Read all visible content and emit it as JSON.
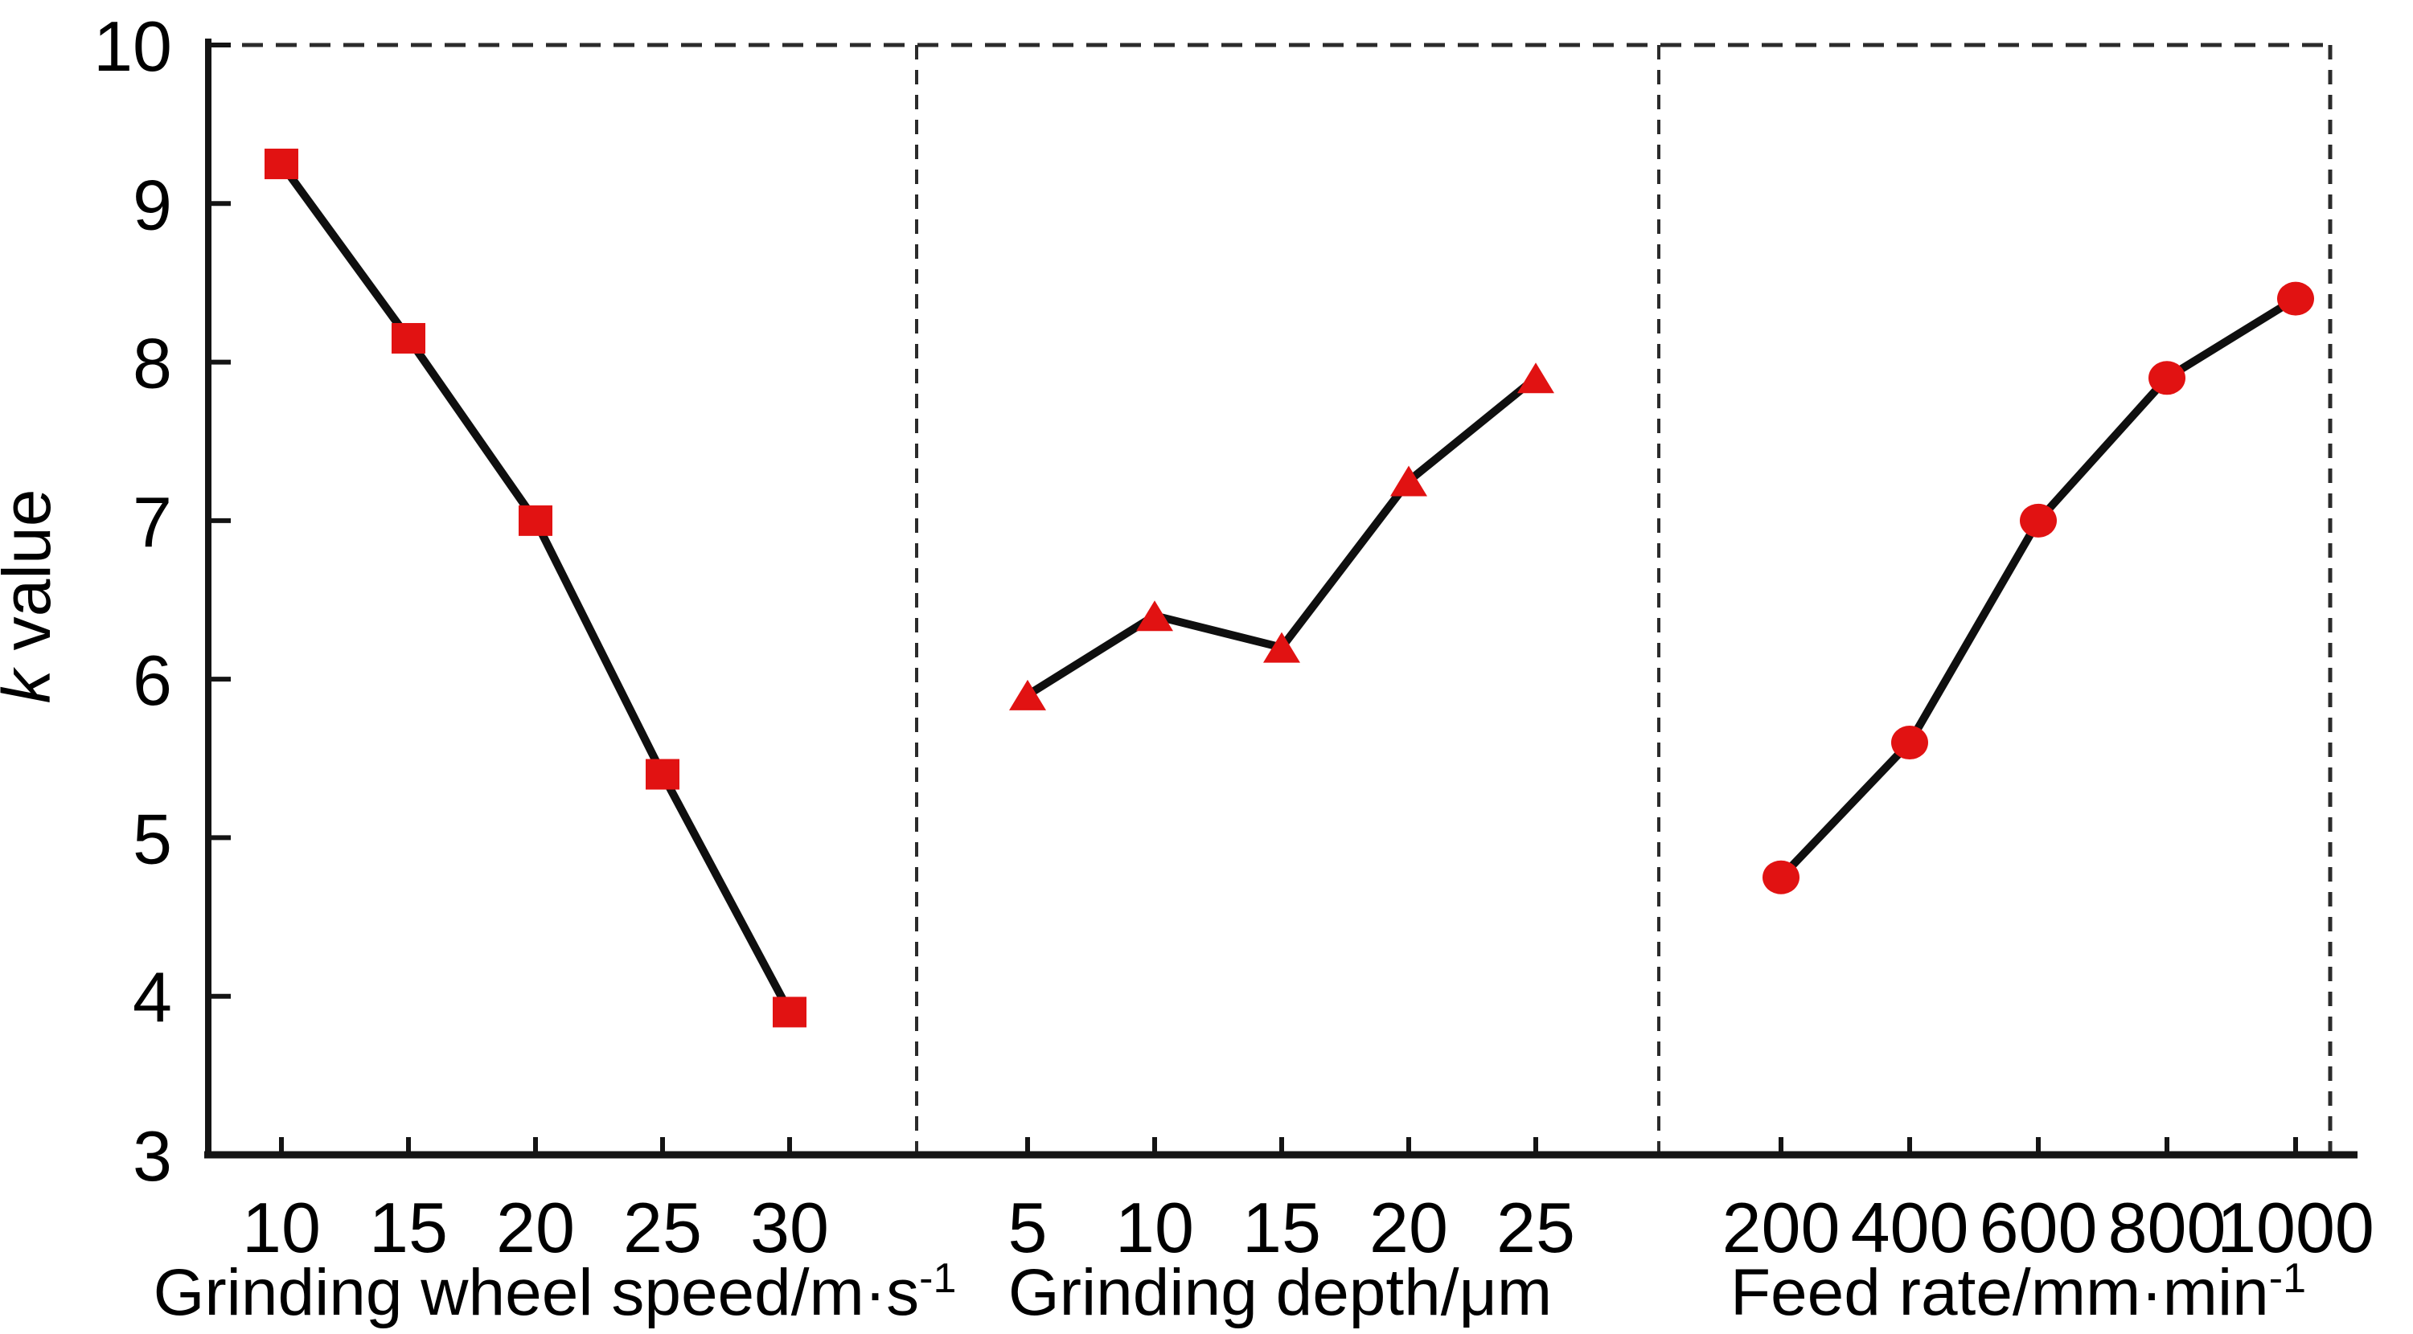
{
  "chart_data": {
    "type": "line",
    "title": "",
    "ylabel": "k value",
    "ylabel_parts": {
      "italic": "k",
      "regular": "value"
    },
    "ylim": [
      3,
      10
    ],
    "yticks": [
      10,
      9,
      8,
      7,
      6,
      5,
      4,
      3
    ],
    "grid": false,
    "legend_position": "none",
    "frame_style": {
      "left": "solid",
      "bottom": "solid",
      "top": "dashed",
      "right": "dashed",
      "panel_dividers": "dashed"
    },
    "colors": {
      "marker": "#e11212",
      "line": "#0f0f0f",
      "axis": "#141414",
      "frame": "#2b2b2b",
      "text": "#000000",
      "background": "#ffffff"
    },
    "panels": [
      {
        "name": "grinding-wheel-speed",
        "xlabel": "Grinding wheel speed/m·s⁻¹",
        "marker": "square",
        "x": [
          10,
          15,
          20,
          25,
          30
        ],
        "y": [
          9.25,
          8.15,
          7.0,
          5.4,
          3.9
        ]
      },
      {
        "name": "grinding-depth",
        "xlabel": "Grinding depth/μm",
        "marker": "triangle",
        "x": [
          5,
          10,
          15,
          20,
          25
        ],
        "y": [
          5.9,
          6.4,
          6.2,
          7.25,
          7.9
        ]
      },
      {
        "name": "feed-rate",
        "xlabel": "Feed rate/mm·min⁻¹",
        "marker": "circle",
        "x": [
          200,
          400,
          600,
          800,
          1000
        ],
        "y": [
          4.75,
          5.6,
          7.0,
          7.9,
          8.4
        ]
      }
    ]
  }
}
